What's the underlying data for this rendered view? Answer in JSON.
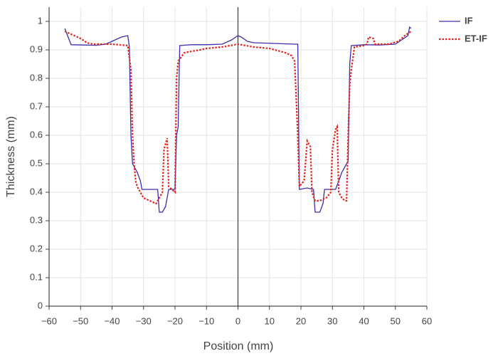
{
  "chart_data": {
    "type": "line",
    "xlabel": "Position (mm)",
    "ylabel": "Thickness (mm)",
    "xlim": [
      -60,
      60
    ],
    "ylim": [
      0,
      1.05
    ],
    "xticks": [
      {
        "value": -60,
        "label": "−60"
      },
      {
        "value": -50,
        "label": "−50"
      },
      {
        "value": -40,
        "label": "−40"
      },
      {
        "value": -30,
        "label": "−30"
      },
      {
        "value": -20,
        "label": "−20"
      },
      {
        "value": -10,
        "label": "−10"
      },
      0,
      10,
      20,
      30,
      40,
      50,
      60
    ],
    "yticks": [
      0,
      0.1,
      0.2,
      0.3,
      0.4,
      0.5,
      0.6,
      0.7,
      0.8,
      0.9,
      1
    ],
    "grid": true,
    "legend": "top-right",
    "series": [
      {
        "name": "IF",
        "color": "#3a2fb0",
        "dash": "solid",
        "x": [
          -55,
          -54.5,
          -53,
          -45,
          -42,
          -40,
          -37,
          -35,
          -34.5,
          -34,
          -33.5,
          -32,
          -31,
          -30.5,
          -28,
          -25.5,
          -25,
          -24,
          -23,
          -22,
          -20,
          -19.5,
          -19,
          -18.5,
          -15,
          -10,
          -5,
          -2,
          0,
          1,
          3,
          5,
          18,
          19,
          19.5,
          22,
          24,
          24.5,
          26,
          27,
          27.5,
          31,
          32,
          33,
          34,
          35,
          35.5,
          36,
          40,
          45,
          50,
          52,
          54,
          54.5,
          55
        ],
        "values": [
          0.975,
          0.96,
          0.918,
          0.916,
          0.92,
          0.93,
          0.945,
          0.95,
          0.91,
          0.6,
          0.5,
          0.47,
          0.44,
          0.41,
          0.41,
          0.41,
          0.33,
          0.33,
          0.35,
          0.41,
          0.41,
          0.6,
          0.63,
          0.915,
          0.918,
          0.918,
          0.92,
          0.935,
          0.95,
          0.945,
          0.93,
          0.925,
          0.92,
          0.92,
          0.41,
          0.415,
          0.41,
          0.33,
          0.33,
          0.36,
          0.41,
          0.41,
          0.44,
          0.47,
          0.49,
          0.51,
          0.85,
          0.915,
          0.918,
          0.917,
          0.92,
          0.935,
          0.95,
          0.98,
          0.975
        ]
      },
      {
        "name": "ET-IF",
        "color": "#e8231c",
        "dash": "dotted",
        "x": [
          -55,
          -52,
          -50,
          -48,
          -46,
          -40,
          -35,
          -34,
          -33.5,
          -33,
          -32.5,
          -32,
          -31,
          -30,
          -28,
          -26,
          -25,
          -24,
          -23.5,
          -22.5,
          -22,
          -21,
          -20,
          -19.5,
          -19,
          -17,
          -12,
          -10,
          -5,
          0,
          5,
          10,
          15,
          17,
          18,
          19,
          19.5,
          21,
          22,
          23,
          23.5,
          24.5,
          26,
          28,
          29.5,
          30,
          31,
          31.5,
          32,
          33,
          34,
          34.5,
          35,
          35.5,
          36,
          37,
          40,
          41,
          41.5,
          43,
          43.5,
          48,
          51,
          53,
          55
        ],
        "values": [
          0.965,
          0.95,
          0.94,
          0.925,
          0.92,
          0.92,
          0.915,
          0.83,
          0.6,
          0.5,
          0.44,
          0.42,
          0.4,
          0.38,
          0.37,
          0.36,
          0.38,
          0.4,
          0.55,
          0.59,
          0.42,
          0.41,
          0.4,
          0.8,
          0.86,
          0.89,
          0.9,
          0.905,
          0.91,
          0.92,
          0.91,
          0.905,
          0.89,
          0.88,
          0.86,
          0.6,
          0.42,
          0.44,
          0.58,
          0.56,
          0.4,
          0.37,
          0.37,
          0.38,
          0.4,
          0.55,
          0.62,
          0.63,
          0.4,
          0.38,
          0.37,
          0.37,
          0.6,
          0.78,
          0.83,
          0.91,
          0.915,
          0.92,
          0.945,
          0.94,
          0.92,
          0.92,
          0.93,
          0.95,
          0.965
        ]
      }
    ]
  }
}
